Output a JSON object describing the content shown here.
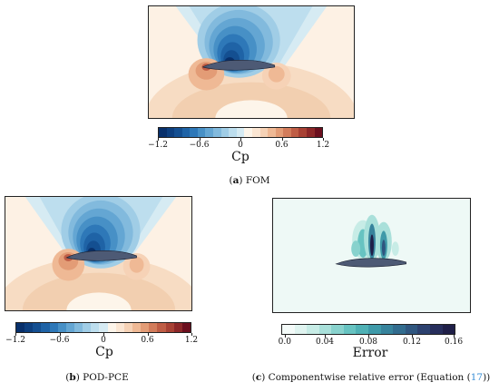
{
  "panels": {
    "fom": {
      "caption_letter": "a",
      "caption_text": "FOM",
      "colorbar_title": "Cp",
      "ticks": [
        "−1.2",
        "−0.6",
        "0",
        "0.6",
        "1.2"
      ]
    },
    "podpce": {
      "caption_letter": "b",
      "caption_text": "POD-PCE",
      "colorbar_title": "Cp",
      "ticks": [
        "−1.2",
        "−0.6",
        "0",
        "0.6",
        "1.2"
      ]
    },
    "error": {
      "caption_letter": "c",
      "caption_text_before": "Componentwise relative error (Equation (",
      "caption_link": "17",
      "caption_text_after": "))",
      "colorbar_title": "Error",
      "ticks": [
        "0.0",
        "0.04",
        "0.08",
        "0.12",
        "0.16"
      ]
    }
  },
  "colors": {
    "cp_scale": [
      "#08306b",
      "#0d3f7f",
      "#144f91",
      "#1f63a6",
      "#2e78b8",
      "#4790c6",
      "#64a6d3",
      "#82badd",
      "#a0cde6",
      "#bddeee",
      "#d6ebf3",
      "#fdf5ea",
      "#fbe6d3",
      "#f6d2b6",
      "#efb995",
      "#e39c76",
      "#d27c5b",
      "#bf5d45",
      "#a84134",
      "#8c2728",
      "#6b0f1e"
    ],
    "err_scale": [
      "#f4fbf9",
      "#e0f4f0",
      "#c7ece6",
      "#a9e0da",
      "#88d2cd",
      "#67c3c1",
      "#4fb1b5",
      "#3f9aa9",
      "#37839c",
      "#326c8e",
      "#2f567f",
      "#2c416f",
      "#272e5c",
      "#1f1f48"
    ],
    "airfoil": "#4d5a75",
    "frame": "#222222",
    "link": "#3a8fd6"
  }
}
